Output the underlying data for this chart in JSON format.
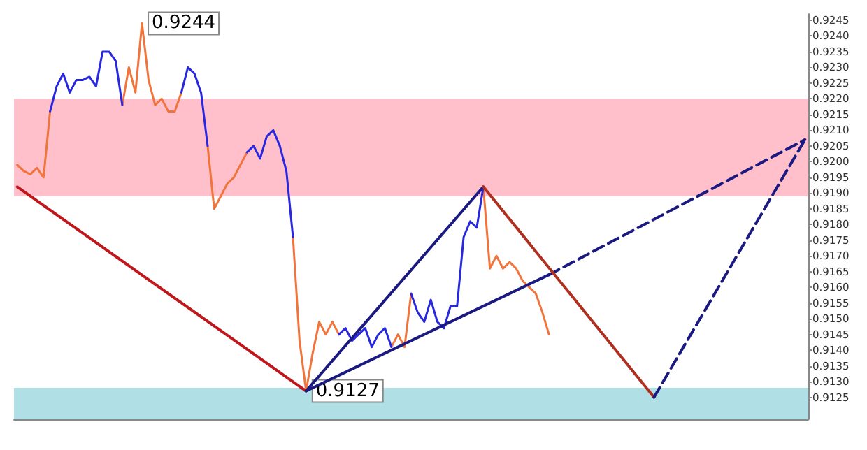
{
  "chart_data": {
    "type": "line",
    "categories": [
      null,
      null,
      null,
      null,
      null,
      null,
      null,
      null,
      null,
      null,
      null,
      null,
      null,
      null,
      null,
      null,
      null,
      null,
      null,
      null,
      null,
      null,
      null,
      null,
      null,
      null,
      null,
      null,
      null,
      null,
      null,
      null,
      null,
      null,
      null,
      null,
      null,
      null,
      null,
      null,
      null,
      null,
      null,
      null,
      null,
      null,
      null,
      null,
      null,
      null,
      null,
      null,
      null,
      null,
      null,
      null,
      null,
      null,
      null,
      null,
      null,
      null,
      null,
      null,
      null,
      null,
      null,
      null,
      null,
      null,
      null,
      null,
      null,
      null,
      null,
      null,
      null,
      null,
      null,
      null,
      null,
      null,
      null,
      null,
      null,
      null,
      null,
      null,
      null,
      null,
      null,
      null,
      null,
      null,
      null,
      null,
      null,
      null,
      null,
      null,
      null,
      null,
      null,
      null,
      null,
      null,
      null,
      null,
      null,
      null,
      null,
      null,
      null,
      null,
      null,
      null,
      null,
      null,
      null,
      null,
      null
    ],
    "ylim": [
      0.9118,
      0.9247
    ],
    "yticks": [
      0.9125,
      {
        "value": 0.913,
        "label": "0.9130"
      },
      0.9135,
      {
        "value": 0.914,
        "label": "0.9140"
      },
      0.9145,
      {
        "value": 0.915,
        "label": "0.9150"
      },
      0.9155,
      {
        "value": 0.916,
        "label": "0.9160"
      },
      0.9165,
      {
        "value": 0.917,
        "label": "0.9170"
      },
      0.9175,
      {
        "value": 0.918,
        "label": "0.9180"
      },
      0.9185,
      {
        "value": 0.919,
        "label": "0.9190"
      },
      0.9195,
      {
        "value": 0.92,
        "label": "0.9200"
      },
      0.9205,
      {
        "value": 0.921,
        "label": "0.9210"
      },
      0.9215,
      {
        "value": 0.922,
        "label": "0.9220"
      },
      0.9225,
      {
        "value": 0.923,
        "label": "0.9230"
      },
      0.9235,
      {
        "value": 0.924,
        "label": "0.9240"
      },
      0.9245
    ],
    "tick_labels": "y",
    "grid": false,
    "marker": "none",
    "line_style": "solid",
    "bands": [
      {
        "axis": "y",
        "from": 0.9189,
        "to": 0.922,
        "color": "#ffc0cb"
      },
      {
        "axis": "y",
        "from": 0.9118,
        "to": 0.9128,
        "color": "#b0e0e6"
      }
    ],
    "series": [
      {
        "color": "#f0743c",
        "values": [
          0.9199,
          0.9197,
          0.9196,
          0.9198,
          0.9195,
          0.9216,
          null,
          null,
          null,
          null,
          null,
          null,
          null,
          null,
          null,
          null,
          0.9218,
          0.923,
          0.9222,
          0.9244,
          0.9226,
          0.9218,
          0.922,
          0.9216,
          0.9216,
          0.9222,
          null,
          null,
          null,
          0.9205,
          0.9185,
          0.9189,
          0.9193,
          0.9195,
          0.9199,
          0.9203,
          null,
          null,
          null,
          null,
          null,
          null,
          0.9176,
          0.9143,
          0.9127,
          0.9139,
          0.9149,
          0.9145,
          0.9149,
          0.9145,
          null,
          null,
          null,
          null,
          null,
          null,
          null,
          0.9141,
          0.9145,
          0.9141,
          0.9158,
          null,
          null,
          null,
          null,
          null,
          null,
          null,
          null,
          null,
          null,
          0.9192,
          0.9166,
          0.917,
          0.9166,
          0.9168,
          0.9166,
          0.9162,
          0.916,
          0.9158,
          0.9152,
          0.9145,
          null,
          null,
          null,
          null,
          null,
          null,
          null,
          null,
          null,
          null,
          null,
          null,
          null,
          null,
          null,
          null,
          null,
          null,
          null,
          null,
          null,
          null,
          null,
          null,
          null,
          null,
          null,
          null,
          null,
          null,
          null,
          null,
          null,
          null,
          null,
          null,
          null,
          null,
          null
        ],
        "value_labels": [
          null,
          null,
          null,
          null,
          null,
          null,
          null,
          null,
          null,
          null,
          null,
          null,
          null,
          null,
          null,
          null,
          null,
          null,
          null,
          "0.9244",
          null,
          null,
          null,
          null,
          null,
          null,
          null,
          null,
          null,
          null,
          null,
          null,
          null,
          null,
          null,
          null,
          null,
          null,
          null,
          null,
          null,
          null,
          null,
          null,
          "0.9127",
          null,
          null,
          null,
          null,
          null,
          null,
          null,
          null,
          null,
          null,
          null,
          null,
          null,
          null,
          null,
          null,
          null,
          null,
          null,
          null,
          null,
          null,
          null,
          null,
          null,
          null,
          null,
          null,
          null,
          null,
          null,
          null,
          null,
          null,
          null,
          null,
          null,
          null,
          null,
          null,
          null,
          null,
          null,
          null,
          null,
          null,
          null,
          null,
          null,
          null,
          null,
          null,
          null,
          null,
          null,
          null,
          null,
          null,
          null,
          null,
          null,
          null,
          null,
          null,
          null,
          null,
          null,
          null,
          null,
          null,
          null,
          null,
          null,
          null,
          null,
          null
        ]
      },
      {
        "color": "#2828e0",
        "values": [
          null,
          null,
          null,
          null,
          null,
          0.9216,
          0.9224,
          0.9228,
          0.9222,
          0.9226,
          0.9226,
          0.9227,
          0.9224,
          0.9235,
          0.9235,
          0.9232,
          0.9218,
          null,
          null,
          null,
          null,
          null,
          null,
          null,
          null,
          0.9222,
          0.923,
          0.9228,
          0.9222,
          0.9205,
          null,
          null,
          null,
          null,
          null,
          0.9203,
          0.9205,
          0.9201,
          0.9208,
          0.921,
          0.9205,
          0.9197,
          0.9176,
          null,
          null,
          null,
          null,
          null,
          null,
          0.9145,
          0.9147,
          0.9143,
          0.9145,
          0.9147,
          0.9141,
          0.9145,
          0.9147,
          0.9141,
          null,
          null,
          0.9158,
          0.9152,
          0.9149,
          0.9156,
          0.9149,
          0.9147,
          0.9154,
          0.9154,
          0.9176,
          0.9181,
          0.9179,
          0.9192,
          null,
          null,
          null,
          null,
          null,
          null,
          null,
          null,
          null,
          null,
          null,
          null,
          null,
          null,
          null,
          null,
          null,
          null,
          null,
          null,
          null,
          null,
          null,
          null,
          null,
          null,
          null,
          null,
          null,
          null,
          null,
          null,
          null,
          null,
          null,
          null,
          null,
          null,
          null,
          null,
          null,
          null,
          null,
          null,
          null,
          null,
          null,
          null,
          null
        ]
      },
      {
        "color": "#c0171c",
        "values": [
          0.9192,
          null,
          null,
          null,
          null,
          null,
          null,
          null,
          null,
          null,
          null,
          null,
          null,
          null,
          null,
          null,
          null,
          null,
          null,
          null,
          null,
          null,
          null,
          null,
          null,
          null,
          null,
          null,
          null,
          null,
          null,
          null,
          null,
          null,
          null,
          null,
          null,
          null,
          null,
          null,
          null,
          null,
          null,
          null,
          0.9127,
          null,
          null,
          null,
          null,
          null,
          null,
          null,
          null,
          null,
          null,
          null,
          null,
          null,
          null,
          null,
          null,
          null,
          null,
          null,
          null,
          null,
          null,
          null,
          null,
          null,
          null,
          null,
          null,
          null,
          null,
          null,
          null,
          null,
          null,
          null,
          null,
          null,
          null,
          null,
          null,
          null,
          null,
          null,
          null,
          null,
          null,
          null,
          null,
          null,
          null,
          null,
          null,
          null,
          null,
          null,
          null,
          null,
          null,
          null,
          null,
          null,
          null,
          null,
          null,
          null,
          null,
          null,
          null,
          null,
          null,
          null,
          null,
          null,
          null,
          null,
          null
        ]
      },
      {
        "color": "#1a1a80",
        "values": [
          null,
          null,
          null,
          null,
          null,
          null,
          null,
          null,
          null,
          null,
          null,
          null,
          null,
          null,
          null,
          null,
          null,
          null,
          null,
          null,
          null,
          null,
          null,
          null,
          null,
          null,
          null,
          null,
          null,
          null,
          null,
          null,
          null,
          null,
          null,
          null,
          null,
          null,
          null,
          null,
          null,
          null,
          null,
          null,
          0.9127,
          null,
          null,
          null,
          null,
          null,
          null,
          null,
          null,
          null,
          null,
          null,
          null,
          null,
          null,
          null,
          null,
          null,
          null,
          null,
          null,
          null,
          null,
          null,
          null,
          null,
          null,
          0.9192,
          null,
          null,
          null,
          null,
          null,
          null,
          null,
          null,
          null,
          null,
          null,
          null,
          null,
          null,
          null,
          null,
          null,
          null,
          null,
          null,
          null,
          null,
          null,
          null,
          null,
          null,
          null,
          null,
          null,
          null,
          null,
          null,
          null,
          null,
          null,
          null,
          null,
          null,
          null,
          null,
          null,
          null,
          null,
          null,
          null,
          null,
          null,
          null,
          null
        ]
      },
      {
        "color": "#1a1a80",
        "values": [
          null,
          null,
          null,
          null,
          null,
          null,
          null,
          null,
          null,
          null,
          null,
          null,
          null,
          null,
          null,
          null,
          null,
          null,
          null,
          null,
          null,
          null,
          null,
          null,
          null,
          null,
          null,
          null,
          null,
          null,
          null,
          null,
          null,
          null,
          null,
          null,
          null,
          null,
          null,
          null,
          null,
          null,
          null,
          null,
          0.9127,
          null,
          null,
          null,
          null,
          null,
          null,
          null,
          null,
          null,
          null,
          null,
          null,
          null,
          null,
          null,
          null,
          null,
          null,
          null,
          null,
          null,
          null,
          null,
          null,
          null,
          null,
          null,
          null,
          null,
          null,
          null,
          null,
          null,
          null,
          null,
          null,
          0.9164,
          null,
          null,
          null,
          null,
          null,
          null,
          null,
          null,
          null,
          null,
          null,
          null,
          null,
          null,
          null,
          null,
          null,
          null,
          null,
          null,
          null,
          null,
          null,
          null,
          null,
          null,
          null,
          null,
          null,
          null,
          null,
          null,
          null,
          null,
          null,
          null,
          null,
          null,
          null
        ]
      },
      {
        "color": "#1a1a80",
        "line_style": "dashed",
        "values": [
          null,
          null,
          null,
          null,
          null,
          null,
          null,
          null,
          null,
          null,
          null,
          null,
          null,
          null,
          null,
          null,
          null,
          null,
          null,
          null,
          null,
          null,
          null,
          null,
          null,
          null,
          null,
          null,
          null,
          null,
          null,
          null,
          null,
          null,
          null,
          null,
          null,
          null,
          null,
          null,
          null,
          null,
          null,
          null,
          null,
          null,
          null,
          null,
          null,
          null,
          null,
          null,
          null,
          null,
          null,
          null,
          null,
          null,
          null,
          null,
          null,
          null,
          null,
          null,
          null,
          null,
          null,
          null,
          null,
          null,
          null,
          null,
          null,
          null,
          null,
          null,
          null,
          null,
          null,
          null,
          null,
          0.9164,
          null,
          null,
          null,
          null,
          null,
          null,
          null,
          null,
          null,
          null,
          null,
          null,
          null,
          null,
          null,
          null,
          null,
          null,
          null,
          null,
          null,
          null,
          null,
          null,
          null,
          null,
          null,
          null,
          null,
          null,
          null,
          null,
          null,
          null,
          null,
          null,
          null,
          null,
          0.9207
        ]
      },
      {
        "color": "#b03020",
        "values": [
          null,
          null,
          null,
          null,
          null,
          null,
          null,
          null,
          null,
          null,
          null,
          null,
          null,
          null,
          null,
          null,
          null,
          null,
          null,
          null,
          null,
          null,
          null,
          null,
          null,
          null,
          null,
          null,
          null,
          null,
          null,
          null,
          null,
          null,
          null,
          null,
          null,
          null,
          null,
          null,
          null,
          null,
          null,
          null,
          null,
          null,
          null,
          null,
          null,
          null,
          null,
          null,
          null,
          null,
          null,
          null,
          null,
          null,
          null,
          null,
          null,
          null,
          null,
          null,
          null,
          null,
          null,
          null,
          null,
          null,
          null,
          0.9192,
          null,
          null,
          null,
          null,
          null,
          null,
          null,
          null,
          null,
          null,
          null,
          null,
          null,
          null,
          null,
          null,
          null,
          null,
          null,
          null,
          null,
          null,
          null,
          null,
          null,
          0.9125,
          null,
          null,
          null,
          null,
          null,
          null,
          null,
          null,
          null,
          null,
          null,
          null,
          null,
          null,
          null,
          null,
          null,
          null,
          null,
          null,
          null,
          null,
          null
        ]
      },
      {
        "color": "#1a1a80",
        "line_style": "dashed",
        "values": [
          null,
          null,
          null,
          null,
          null,
          null,
          null,
          null,
          null,
          null,
          null,
          null,
          null,
          null,
          null,
          null,
          null,
          null,
          null,
          null,
          null,
          null,
          null,
          null,
          null,
          null,
          null,
          null,
          null,
          null,
          null,
          null,
          null,
          null,
          null,
          null,
          null,
          null,
          null,
          null,
          null,
          null,
          null,
          null,
          null,
          null,
          null,
          null,
          null,
          null,
          null,
          null,
          null,
          null,
          null,
          null,
          null,
          null,
          null,
          null,
          null,
          null,
          null,
          null,
          null,
          null,
          null,
          null,
          null,
          null,
          null,
          null,
          null,
          null,
          null,
          null,
          null,
          null,
          null,
          null,
          null,
          null,
          null,
          null,
          null,
          null,
          null,
          null,
          null,
          null,
          null,
          null,
          null,
          null,
          null,
          null,
          null,
          0.9125,
          null,
          null,
          null,
          null,
          null,
          null,
          null,
          null,
          null,
          null,
          null,
          null,
          null,
          null,
          null,
          null,
          null,
          null,
          null,
          null,
          null,
          null,
          0.9207
        ]
      }
    ]
  }
}
